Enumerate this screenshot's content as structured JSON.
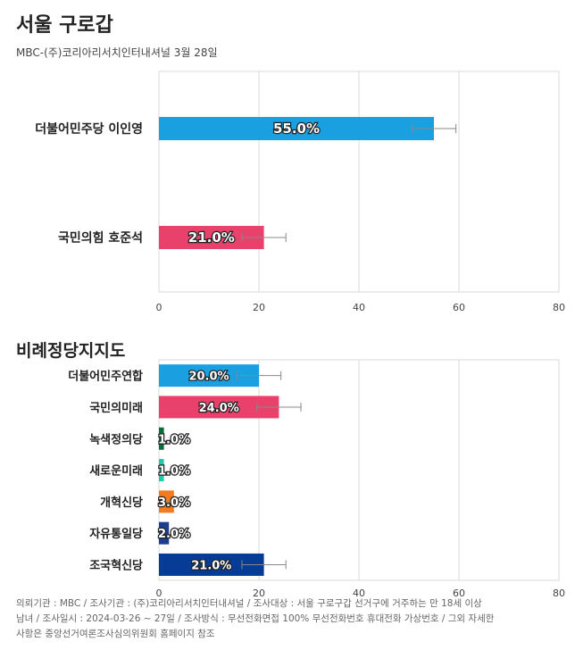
{
  "page": {
    "title": "서울 구로갑",
    "subtitle": "MBC-(주)코리아리서치인터내셔널 3월 28일"
  },
  "chart_data": [
    {
      "type": "bar",
      "orientation": "horizontal",
      "title": "",
      "categories": [
        "더불어민주당 이인영",
        "국민의힘 호준석"
      ],
      "values": [
        55.0,
        21.0
      ],
      "value_labels": [
        "55.0%",
        "21.0%"
      ],
      "error_margin": [
        4.4,
        4.4
      ],
      "colors": [
        "#1a9fe0",
        "#e8416b"
      ],
      "xlim": [
        0,
        80
      ],
      "xticks": [
        "0",
        "20",
        "40",
        "60",
        "80"
      ],
      "grid": true
    },
    {
      "type": "bar",
      "orientation": "horizontal",
      "title": "비례정당지지도",
      "categories": [
        "더불어민주연합",
        "국민의미래",
        "녹색정의당",
        "새로운미래",
        "개혁신당",
        "자유통일당",
        "조국혁신당"
      ],
      "values": [
        20.0,
        24.0,
        1.0,
        1.0,
        3.0,
        2.0,
        21.0
      ],
      "value_labels": [
        "20.0%",
        "24.0%",
        "1.0%",
        "1.0%",
        "3.0%",
        "2.0%",
        "21.0%"
      ],
      "error_margin": [
        4.4,
        4.4,
        0,
        0,
        1.8,
        0,
        4.4
      ],
      "colors": [
        "#1a9fe0",
        "#e8416b",
        "#0b6b3a",
        "#22c9a9",
        "#f47a20",
        "#1d3d8f",
        "#063b96"
      ],
      "xlim": [
        0,
        80
      ],
      "xticks": [
        "0",
        "20",
        "40",
        "60",
        "80"
      ],
      "grid": true
    }
  ],
  "footer": {
    "line1": "의뢰기관 : MBC / 조사기관 : (주)코리아리서치인터내셔널 / 조사대상 : 서울 구로구갑 선거구에 거주하는 만 18세 이상",
    "line2": "남녀 / 조사일시 : 2024-03-26 ~ 27일 / 조사방식 : 무선전화면접 100% 무선전화번호 휴대전화 가상번호 / 그외 자세한",
    "line3": "사항은 중앙선거여론조사심의위원회 홈페이지 참조"
  }
}
